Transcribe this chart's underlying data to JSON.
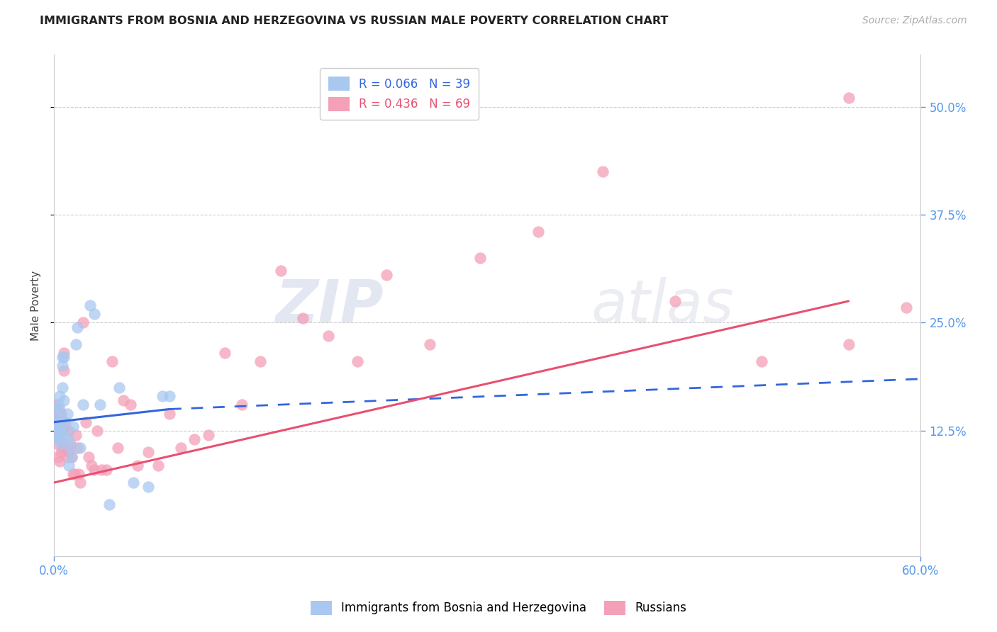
{
  "title": "IMMIGRANTS FROM BOSNIA AND HERZEGOVINA VS RUSSIAN MALE POVERTY CORRELATION CHART",
  "source": "Source: ZipAtlas.com",
  "ylabel": "Male Poverty",
  "ytick_labels": [
    "50.0%",
    "37.5%",
    "25.0%",
    "12.5%"
  ],
  "ytick_values": [
    0.5,
    0.375,
    0.25,
    0.125
  ],
  "xlim": [
    0.0,
    0.6
  ],
  "ylim": [
    -0.02,
    0.56
  ],
  "legend_bosnia_r": "R = 0.066",
  "legend_bosnia_n": "N = 39",
  "legend_russian_r": "R = 0.436",
  "legend_russian_n": "N = 69",
  "bosnia_color": "#A8C8F0",
  "russian_color": "#F4A0B8",
  "bosnia_line_color": "#3366DD",
  "russian_line_color": "#E85070",
  "background_color": "#ffffff",
  "bosnia_line_x0": 0.0,
  "bosnia_line_y0": 0.135,
  "bosnia_line_x1": 0.08,
  "bosnia_line_y1": 0.15,
  "bosnia_line_dash_x0": 0.08,
  "bosnia_line_dash_y0": 0.15,
  "bosnia_line_dash_x1": 0.6,
  "bosnia_line_dash_y1": 0.185,
  "russian_line_x0": 0.0,
  "russian_line_y0": 0.065,
  "russian_line_x1": 0.55,
  "russian_line_y1": 0.275,
  "bosnia_points_x": [
    0.001,
    0.001,
    0.002,
    0.002,
    0.003,
    0.003,
    0.003,
    0.004,
    0.004,
    0.004,
    0.005,
    0.005,
    0.005,
    0.006,
    0.006,
    0.006,
    0.007,
    0.007,
    0.008,
    0.008,
    0.009,
    0.01,
    0.01,
    0.011,
    0.012,
    0.013,
    0.015,
    0.016,
    0.018,
    0.02,
    0.025,
    0.028,
    0.032,
    0.038,
    0.045,
    0.055,
    0.065,
    0.075,
    0.08
  ],
  "bosnia_points_y": [
    0.145,
    0.135,
    0.13,
    0.12,
    0.155,
    0.13,
    0.115,
    0.165,
    0.15,
    0.125,
    0.125,
    0.14,
    0.11,
    0.21,
    0.2,
    0.175,
    0.21,
    0.16,
    0.135,
    0.12,
    0.145,
    0.115,
    0.085,
    0.105,
    0.095,
    0.13,
    0.225,
    0.245,
    0.105,
    0.155,
    0.27,
    0.26,
    0.155,
    0.04,
    0.175,
    0.065,
    0.06,
    0.165,
    0.165
  ],
  "russian_points_x": [
    0.001,
    0.001,
    0.001,
    0.002,
    0.002,
    0.002,
    0.003,
    0.003,
    0.003,
    0.004,
    0.004,
    0.004,
    0.004,
    0.005,
    0.005,
    0.005,
    0.006,
    0.006,
    0.007,
    0.007,
    0.008,
    0.008,
    0.009,
    0.01,
    0.01,
    0.011,
    0.012,
    0.013,
    0.014,
    0.015,
    0.016,
    0.017,
    0.018,
    0.02,
    0.022,
    0.024,
    0.026,
    0.028,
    0.03,
    0.033,
    0.036,
    0.04,
    0.044,
    0.048,
    0.053,
    0.058,
    0.065,
    0.072,
    0.08,
    0.088,
    0.097,
    0.107,
    0.118,
    0.13,
    0.143,
    0.157,
    0.172,
    0.19,
    0.21,
    0.23,
    0.26,
    0.295,
    0.335,
    0.38,
    0.43,
    0.49,
    0.55,
    0.59,
    0.55
  ],
  "russian_points_y": [
    0.155,
    0.14,
    0.12,
    0.15,
    0.13,
    0.11,
    0.14,
    0.12,
    0.095,
    0.145,
    0.13,
    0.115,
    0.09,
    0.145,
    0.125,
    0.1,
    0.13,
    0.105,
    0.215,
    0.195,
    0.13,
    0.105,
    0.095,
    0.125,
    0.1,
    0.11,
    0.095,
    0.075,
    0.075,
    0.12,
    0.105,
    0.075,
    0.065,
    0.25,
    0.135,
    0.095,
    0.085,
    0.08,
    0.125,
    0.08,
    0.08,
    0.205,
    0.105,
    0.16,
    0.155,
    0.085,
    0.1,
    0.085,
    0.145,
    0.105,
    0.115,
    0.12,
    0.215,
    0.155,
    0.205,
    0.31,
    0.255,
    0.235,
    0.205,
    0.305,
    0.225,
    0.325,
    0.355,
    0.425,
    0.275,
    0.205,
    0.225,
    0.268,
    0.51
  ]
}
